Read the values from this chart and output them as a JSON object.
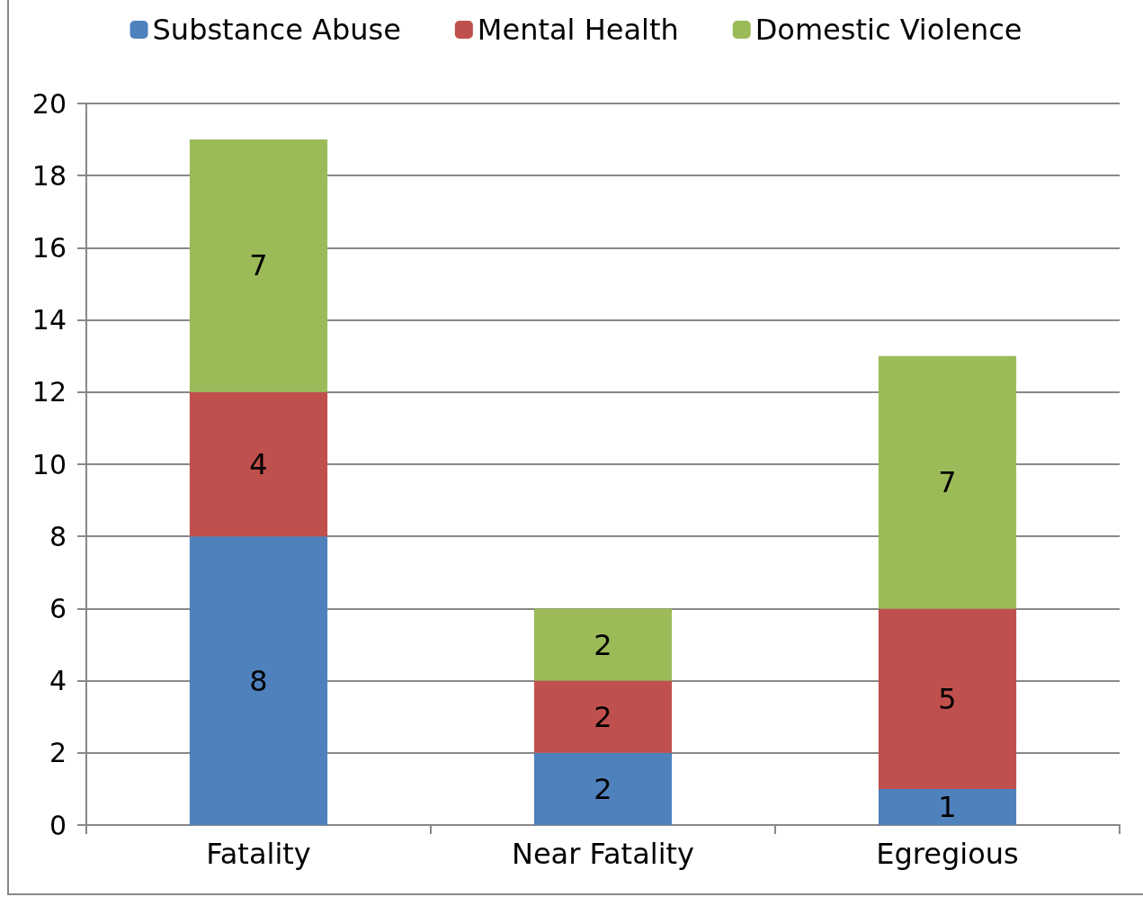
{
  "chart_data": {
    "type": "bar",
    "stacked": true,
    "categories": [
      "Fatality",
      "Near Fatality",
      "Egregious"
    ],
    "series": [
      {
        "name": "Substance Abuse",
        "color": "#4f81bd",
        "values": [
          8,
          2,
          1
        ]
      },
      {
        "name": "Mental Health",
        "color": "#c0504d",
        "values": [
          4,
          2,
          5
        ]
      },
      {
        "name": "Domestic Violence",
        "color": "#9bbb59",
        "values": [
          7,
          2,
          7
        ]
      }
    ],
    "ylim": [
      0,
      20
    ],
    "yticks": [
      0,
      2,
      4,
      6,
      8,
      10,
      12,
      14,
      16,
      18,
      20
    ],
    "grid": "y",
    "legend": "top",
    "data_labels": true
  }
}
